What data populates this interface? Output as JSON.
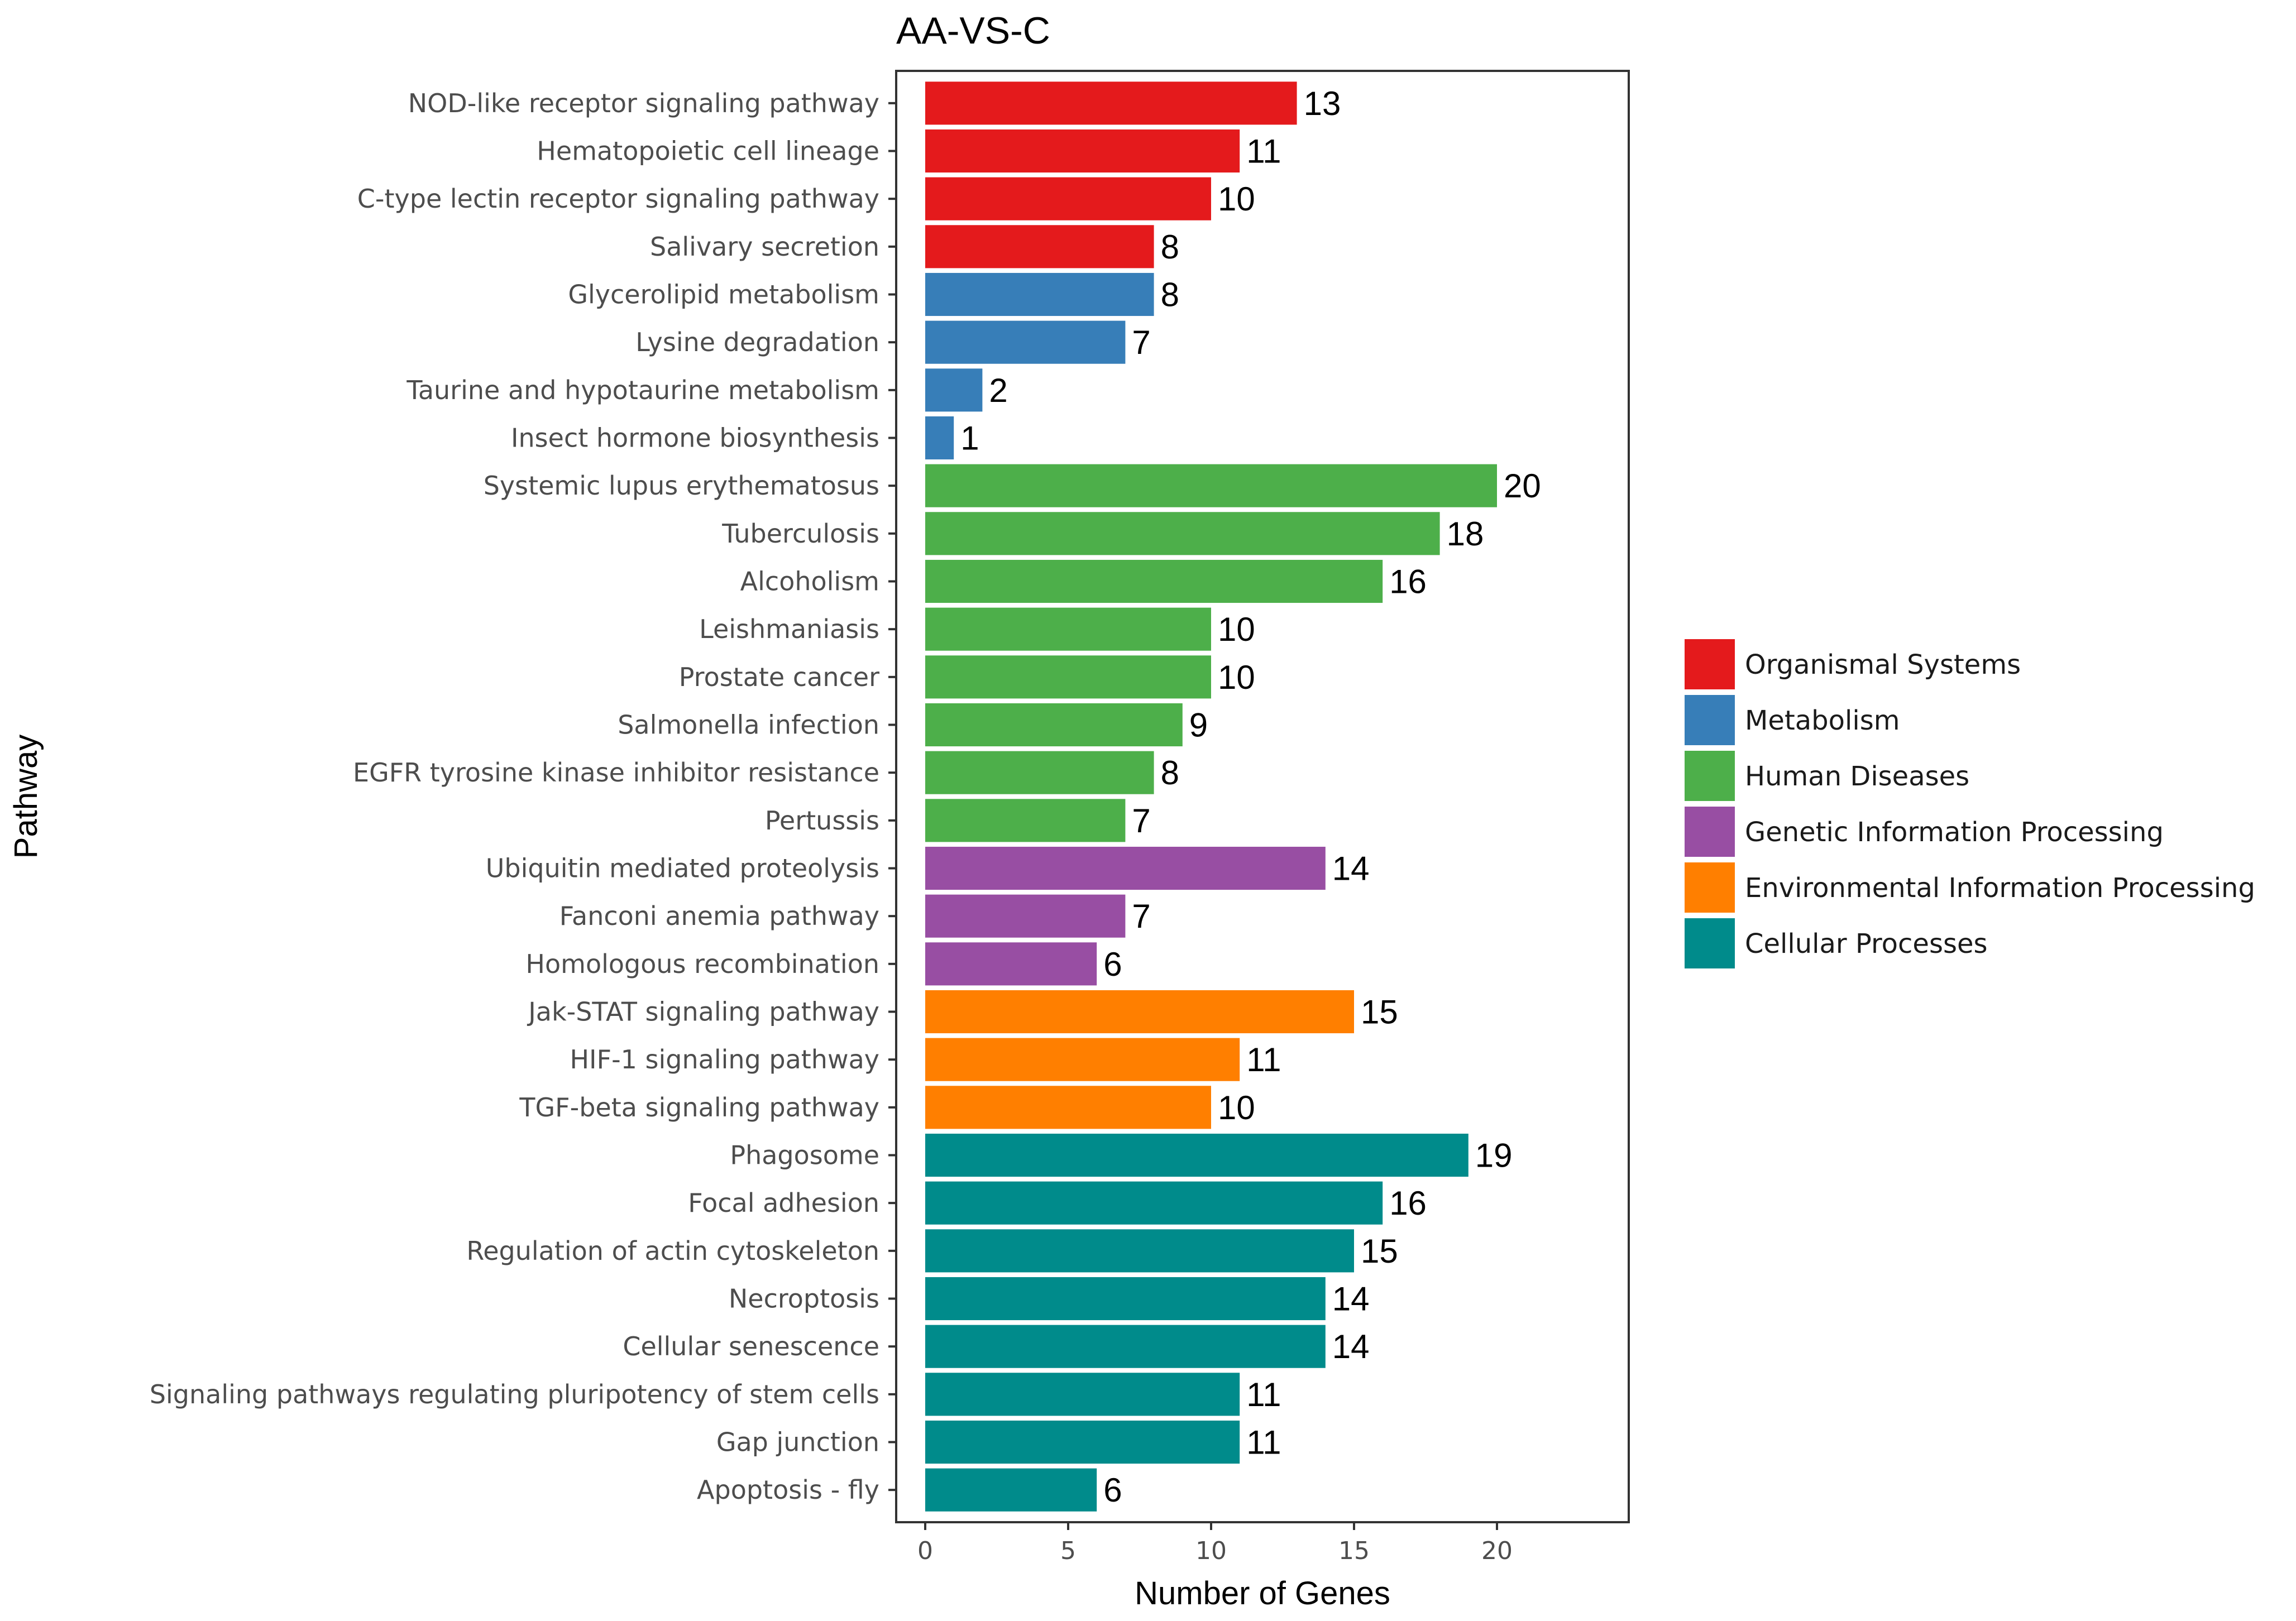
{
  "chart_data": {
    "type": "bar",
    "orientation": "horizontal",
    "title": "AA-VS-C",
    "xlabel": "Number of Genes",
    "ylabel": "Pathway",
    "xlim": [
      0,
      24.5
    ],
    "xticks": [
      0,
      5,
      10,
      15,
      20
    ],
    "grid": false,
    "legend_position": "right",
    "series_groups": [
      {
        "name": "Organismal Systems",
        "color": "#E41A1C"
      },
      {
        "name": "Metabolism",
        "color": "#377EB8"
      },
      {
        "name": "Human Diseases",
        "color": "#4DAF4A"
      },
      {
        "name": "Genetic Information Processing",
        "color": "#984EA3"
      },
      {
        "name": "Environmental Information Processing",
        "color": "#FF7F00"
      },
      {
        "name": "Cellular Processes",
        "color": "#008B8B"
      }
    ],
    "bars": [
      {
        "category": "NOD-like receptor signaling pathway",
        "value": 13,
        "group": "Organismal Systems"
      },
      {
        "category": "Hematopoietic cell lineage",
        "value": 11,
        "group": "Organismal Systems"
      },
      {
        "category": "C-type lectin receptor signaling pathway",
        "value": 10,
        "group": "Organismal Systems"
      },
      {
        "category": "Salivary secretion",
        "value": 8,
        "group": "Organismal Systems"
      },
      {
        "category": "Glycerolipid metabolism",
        "value": 8,
        "group": "Metabolism"
      },
      {
        "category": "Lysine degradation",
        "value": 7,
        "group": "Metabolism"
      },
      {
        "category": "Taurine and hypotaurine metabolism",
        "value": 2,
        "group": "Metabolism"
      },
      {
        "category": "Insect hormone biosynthesis",
        "value": 1,
        "group": "Metabolism"
      },
      {
        "category": "Systemic lupus erythematosus",
        "value": 20,
        "group": "Human Diseases"
      },
      {
        "category": "Tuberculosis",
        "value": 18,
        "group": "Human Diseases"
      },
      {
        "category": "Alcoholism",
        "value": 16,
        "group": "Human Diseases"
      },
      {
        "category": "Leishmaniasis",
        "value": 10,
        "group": "Human Diseases"
      },
      {
        "category": "Prostate cancer",
        "value": 10,
        "group": "Human Diseases"
      },
      {
        "category": "Salmonella infection",
        "value": 9,
        "group": "Human Diseases"
      },
      {
        "category": "EGFR tyrosine kinase inhibitor resistance",
        "value": 8,
        "group": "Human Diseases"
      },
      {
        "category": "Pertussis",
        "value": 7,
        "group": "Human Diseases"
      },
      {
        "category": "Ubiquitin mediated proteolysis",
        "value": 14,
        "group": "Genetic Information Processing"
      },
      {
        "category": "Fanconi anemia pathway",
        "value": 7,
        "group": "Genetic Information Processing"
      },
      {
        "category": "Homologous recombination",
        "value": 6,
        "group": "Genetic Information Processing"
      },
      {
        "category": "Jak-STAT signaling pathway",
        "value": 15,
        "group": "Environmental Information Processing"
      },
      {
        "category": "HIF-1 signaling pathway",
        "value": 11,
        "group": "Environmental Information Processing"
      },
      {
        "category": "TGF-beta signaling pathway",
        "value": 10,
        "group": "Environmental Information Processing"
      },
      {
        "category": "Phagosome",
        "value": 19,
        "group": "Cellular Processes"
      },
      {
        "category": "Focal adhesion",
        "value": 16,
        "group": "Cellular Processes"
      },
      {
        "category": "Regulation of actin cytoskeleton",
        "value": 15,
        "group": "Cellular Processes"
      },
      {
        "category": "Necroptosis",
        "value": 14,
        "group": "Cellular Processes"
      },
      {
        "category": "Cellular senescence",
        "value": 14,
        "group": "Cellular Processes"
      },
      {
        "category": "Signaling pathways regulating pluripotency of stem cells",
        "value": 11,
        "group": "Cellular Processes"
      },
      {
        "category": "Gap junction",
        "value": 11,
        "group": "Cellular Processes"
      },
      {
        "category": "Apoptosis - fly",
        "value": 6,
        "group": "Cellular Processes"
      }
    ]
  }
}
